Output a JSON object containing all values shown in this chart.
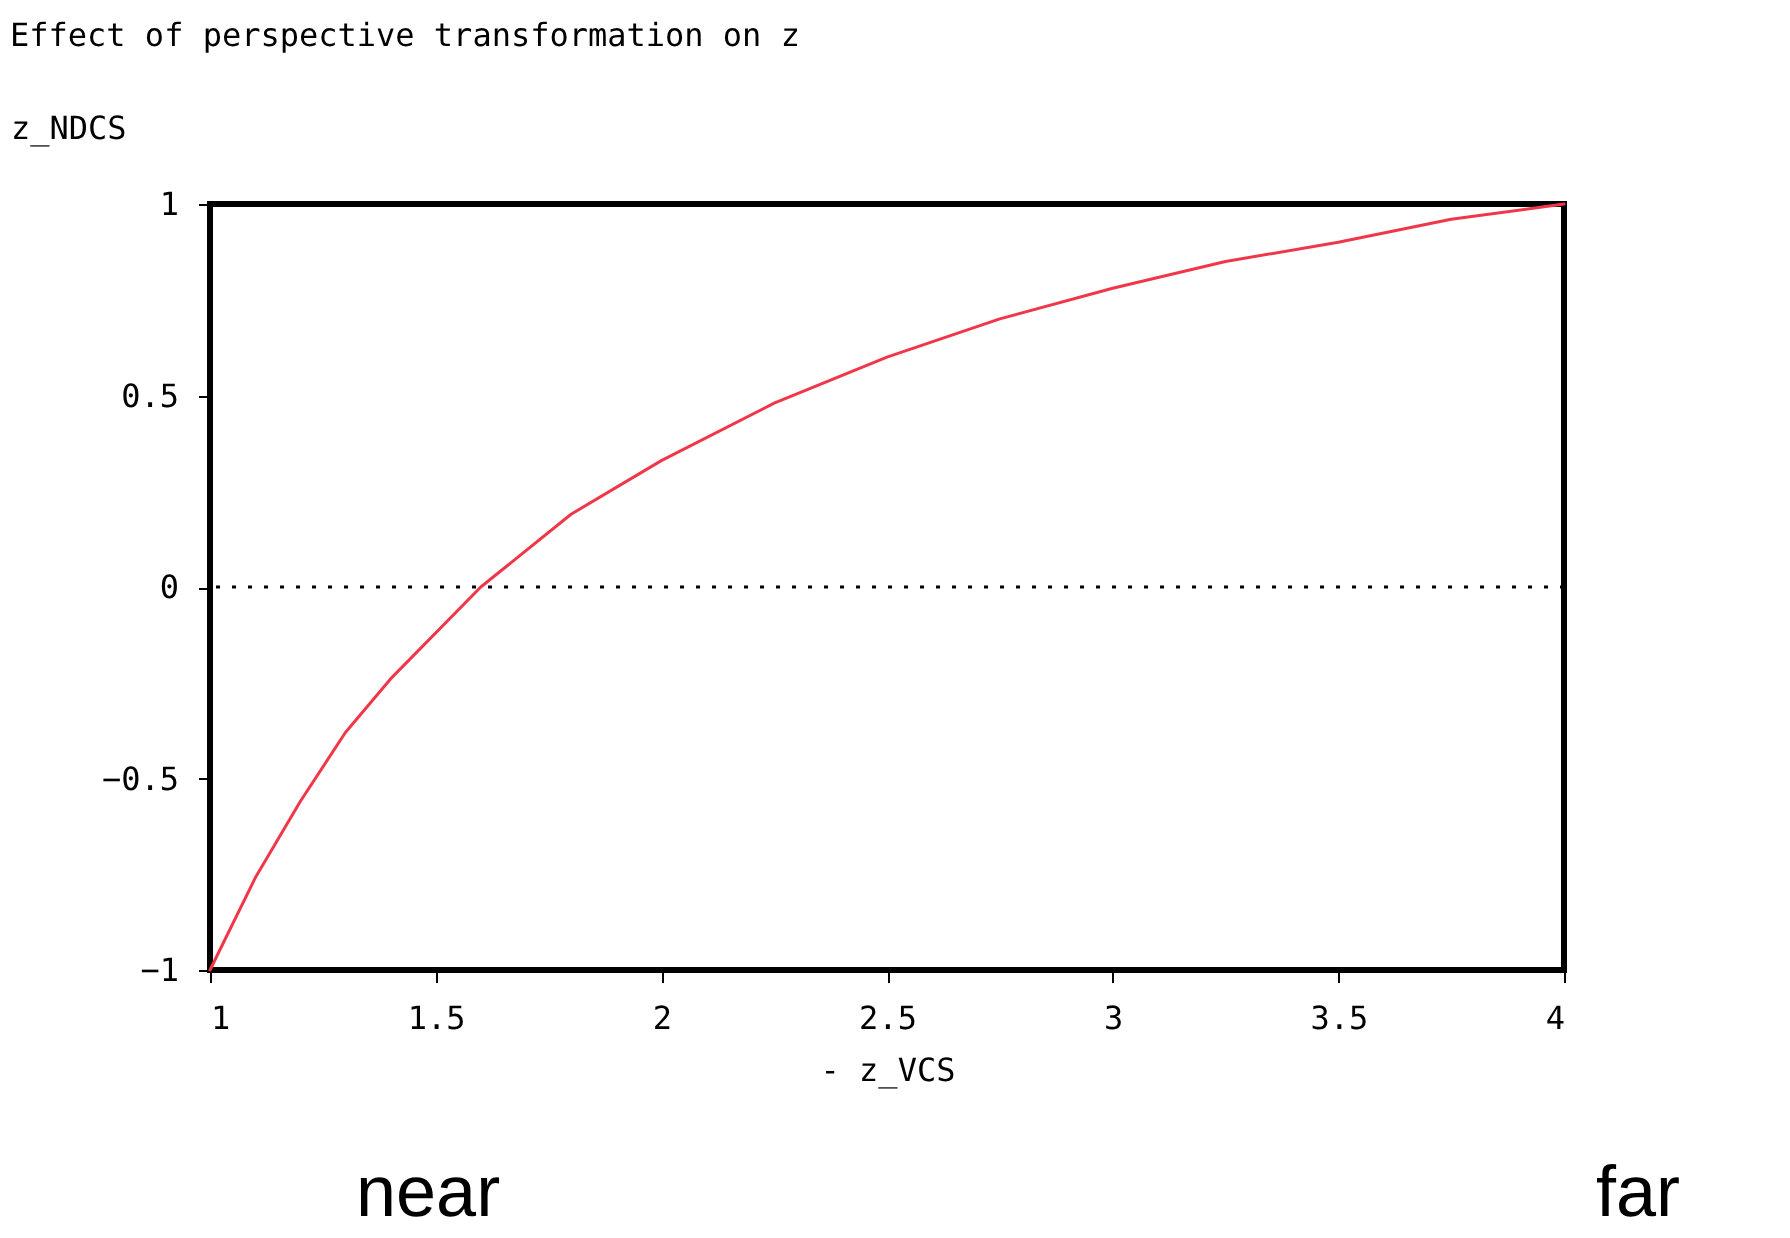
{
  "chart_data": {
    "type": "line",
    "title": "Effect of perspective transformation on z",
    "xlabel": "- z_VCS",
    "ylabel": "z_NDCS",
    "x": [
      1,
      1.1,
      1.2,
      1.3,
      1.4,
      1.6,
      1.8,
      2,
      2.25,
      2.5,
      2.75,
      3,
      3.25,
      3.5,
      3.75,
      4
    ],
    "series": [
      {
        "color": "#f0374a",
        "values": [
          -1,
          -0.76,
          -0.56,
          -0.38,
          -0.24,
          0,
          0.19,
          0.33,
          0.48,
          0.6,
          0.7,
          0.78,
          0.85,
          0.9,
          0.96,
          1
        ]
      }
    ],
    "xlim": [
      1,
      4
    ],
    "xticks": [
      1,
      1.5,
      2,
      2.5,
      3,
      3.5,
      4
    ],
    "ylim": [
      -1,
      1
    ],
    "yticks": [
      -1,
      -0.5,
      0,
      0.5,
      1
    ],
    "ref_lines": [
      {
        "axis": "y",
        "value": 0,
        "line_style": "dotted",
        "color": "#000000"
      }
    ],
    "annotations": [
      "near",
      "far"
    ]
  }
}
